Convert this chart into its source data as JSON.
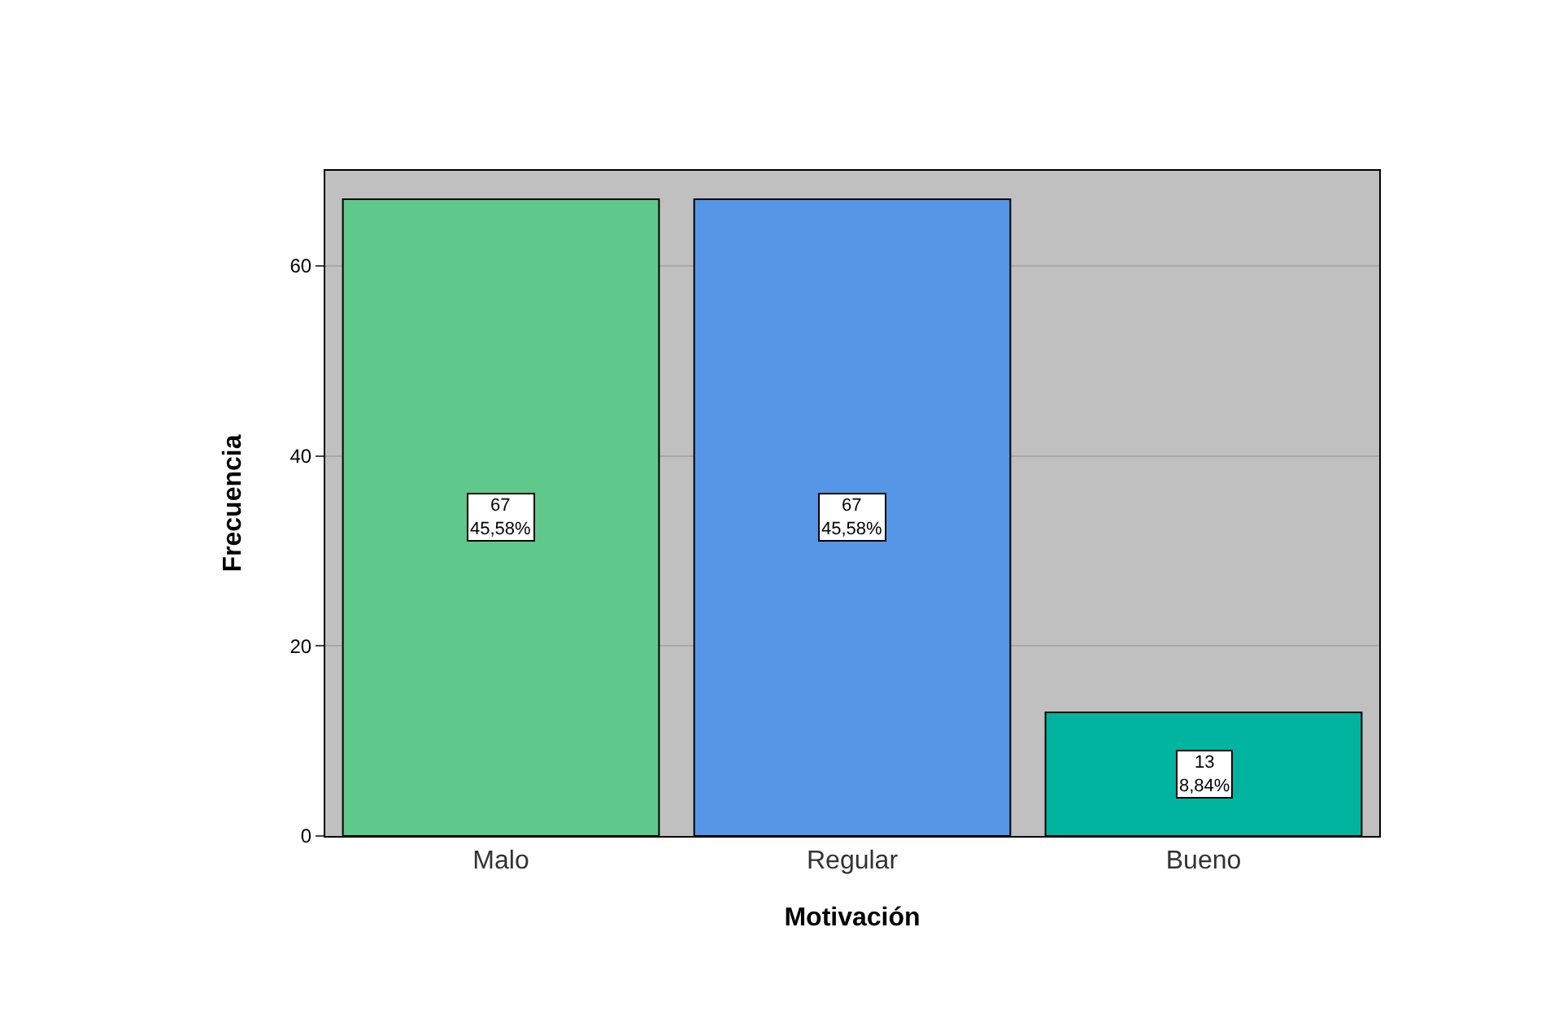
{
  "chart_data": {
    "type": "bar",
    "xlabel": "Motivación",
    "ylabel": "Frecuencia",
    "categories": [
      "Malo",
      "Regular",
      "Bueno"
    ],
    "values": [
      67,
      67,
      13
    ],
    "colors": [
      "#5ec98a",
      "#5596e6",
      "#00b4a0"
    ],
    "value_labels": [
      "67\n45,58%",
      "67\n45,58%",
      "13\n8,84%"
    ],
    "ylim": [
      0,
      70
    ],
    "yticks": [
      0,
      20,
      40,
      60
    ],
    "grid": "y"
  }
}
